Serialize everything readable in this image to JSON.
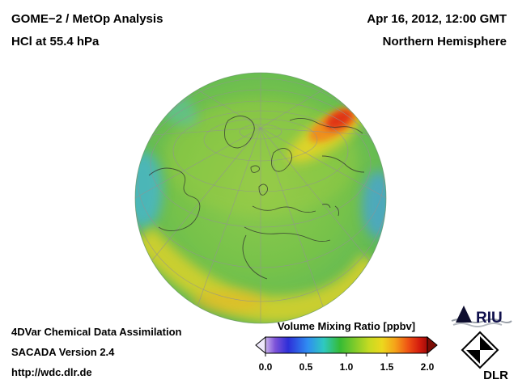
{
  "header": {
    "title_line1": "GOME−2 / MetOp Analysis",
    "title_line2": "HCl at 55.4 hPa",
    "date": "Apr 16, 2012, 12:00 GMT",
    "region": "Northern Hemisphere"
  },
  "footer": {
    "line1": "4DVar Chemical Data Assimilation",
    "line2": "SACADA Version 2.4",
    "line3": "http://wdc.dlr.de"
  },
  "colorbar": {
    "title": "Volume Mixing Ratio [ppbv]",
    "ticks": [
      "0.0",
      "0.5",
      "1.0",
      "1.5",
      "2.0"
    ],
    "left_arrow_color": "#efe9fb",
    "right_arrow_color": "#7c0d05",
    "scale": [
      {
        "offset": "0%",
        "color": "#c9b2ec"
      },
      {
        "offset": "6%",
        "color": "#7d52d8"
      },
      {
        "offset": "14%",
        "color": "#2d2fd8"
      },
      {
        "offset": "26%",
        "color": "#2f8df2"
      },
      {
        "offset": "36%",
        "color": "#2fc9c0"
      },
      {
        "offset": "46%",
        "color": "#35bb35"
      },
      {
        "offset": "55%",
        "color": "#7ecb2b"
      },
      {
        "offset": "64%",
        "color": "#c6da22"
      },
      {
        "offset": "72%",
        "color": "#ecd81e"
      },
      {
        "offset": "80%",
        "color": "#f5a319"
      },
      {
        "offset": "88%",
        "color": "#ef5414"
      },
      {
        "offset": "95%",
        "color": "#d41d0e"
      },
      {
        "offset": "100%",
        "color": "#a30b08"
      }
    ]
  },
  "logos": {
    "riu_text": "RIU",
    "dlr_text": "DLR"
  },
  "chart_data": {
    "type": "heatmap",
    "title": "GOME−2 / MetOp Analysis — HCl at 55.4 hPa",
    "subtitle": "Apr 16, 2012, 12:00 GMT — Northern Hemisphere",
    "projection": "orthographic globe, Northern Hemisphere view with graticule and coastlines",
    "variable": "HCl volume mixing ratio",
    "units": "ppbv",
    "colorbar_label": "Volume Mixing Ratio [ppbv]",
    "colorbar_range": [
      0.0,
      2.0
    ],
    "colorbar_ticks": [
      0.0,
      0.5,
      1.0,
      1.5,
      2.0
    ],
    "legend_position": "bottom-right horizontal colorbar with open-ended arrows",
    "features": [
      {
        "region": "high-Arctic / northern Siberia streak (upper right of globe)",
        "value_ppbv": 1.9,
        "appearance": "red-orange maximum with yellow halo"
      },
      {
        "region": "most of hemisphere background",
        "value_ppbv": 1.0,
        "appearance": "uniform green"
      },
      {
        "region": "subtropical band across lower/left globe",
        "value_ppbv": 1.3,
        "appearance": "yellow band"
      },
      {
        "region": "limb patches at west and east edges",
        "value_ppbv": 0.7,
        "appearance": "cyan-blue patches"
      }
    ]
  }
}
